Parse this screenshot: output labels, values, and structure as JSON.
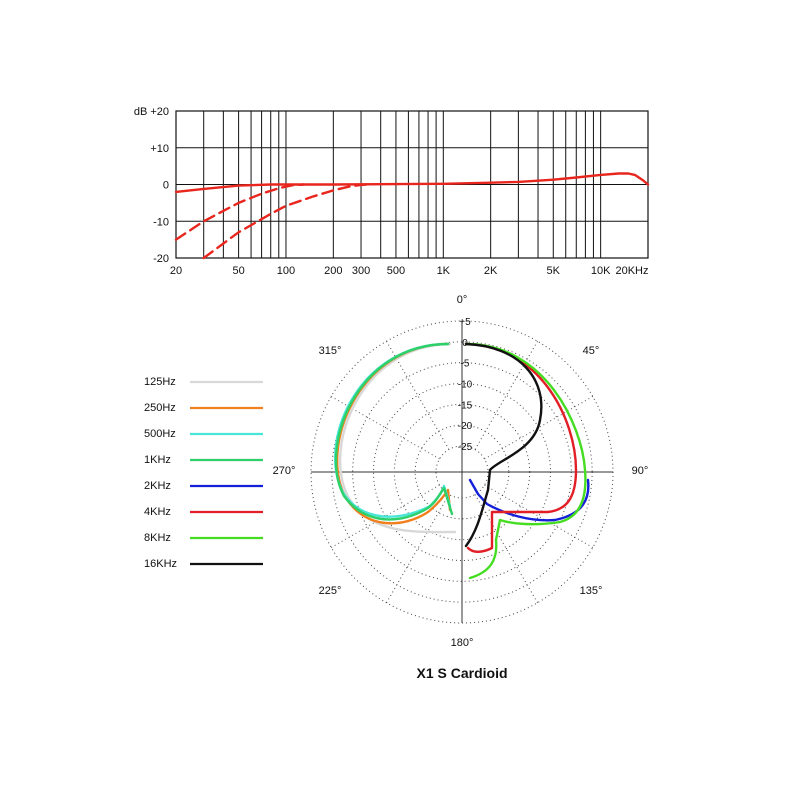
{
  "chart_data": [
    {
      "type": "line",
      "x_scale": "log",
      "xlim": [
        20,
        20000
      ],
      "ylim": [
        -20,
        20
      ],
      "y_ticks": [
        {
          "value": 20,
          "label": "dB +20"
        },
        {
          "value": 10,
          "label": "+10"
        },
        {
          "value": 0,
          "label": "0"
        },
        {
          "value": -10,
          "label": "-10"
        },
        {
          "value": -20,
          "label": "-20"
        }
      ],
      "x_ticks": [
        {
          "value": 20,
          "label": "20"
        },
        {
          "value": 50,
          "label": "50"
        },
        {
          "value": 100,
          "label": "100"
        },
        {
          "value": 200,
          "label": "200"
        },
        {
          "value": 300,
          "label": "300"
        },
        {
          "value": 500,
          "label": "500"
        },
        {
          "value": 1000,
          "label": "1K"
        },
        {
          "value": 2000,
          "label": "2K"
        },
        {
          "value": 5000,
          "label": "5K"
        },
        {
          "value": 10000,
          "label": "10K"
        },
        {
          "value": 20000,
          "label": "20KHz"
        }
      ],
      "grid": true,
      "series": [
        {
          "style": "solid",
          "color": "#e8261e",
          "points": [
            [
              20,
              -2
            ],
            [
              30,
              -1.2
            ],
            [
              50,
              -0.3
            ],
            [
              80,
              0
            ],
            [
              200,
              0
            ],
            [
              500,
              0.1
            ],
            [
              1000,
              0.2
            ],
            [
              2000,
              0.5
            ],
            [
              3000,
              0.7
            ],
            [
              5000,
              1.3
            ],
            [
              7000,
              1.9
            ],
            [
              10000,
              2.6
            ],
            [
              13000,
              3.0
            ],
            [
              15000,
              3.0
            ],
            [
              16500,
              2.6
            ],
            [
              18500,
              1.2
            ],
            [
              20000,
              0
            ]
          ]
        },
        {
          "style": "dashed",
          "color": "#e8261e",
          "points": [
            [
              20,
              -15
            ],
            [
              30,
              -10
            ],
            [
              50,
              -5
            ],
            [
              70,
              -2.5
            ],
            [
              90,
              -1
            ],
            [
              110,
              -0.2
            ],
            [
              130,
              0
            ]
          ]
        },
        {
          "style": "dashed",
          "color": "#e8261e",
          "points": [
            [
              30,
              -20
            ],
            [
              50,
              -13
            ],
            [
              80,
              -8
            ],
            [
              100,
              -5.8
            ],
            [
              150,
              -3.2
            ],
            [
              200,
              -1.6
            ],
            [
              250,
              -0.6
            ],
            [
              300,
              -0.1
            ],
            [
              330,
              0
            ]
          ]
        }
      ]
    },
    {
      "type": "polar",
      "r_ticks": [
        "+5",
        "0",
        "-5",
        "-10",
        "-15",
        "-20",
        "-25"
      ],
      "angle_labels": [
        "0°",
        "45°",
        "90°",
        "135°",
        "180°",
        "225°",
        "270°",
        "315°"
      ],
      "legend_position": "left",
      "series": [
        {
          "name": "125Hz",
          "color": "#d8d8d8"
        },
        {
          "name": "250Hz",
          "color": "#f07f1e"
        },
        {
          "name": "500Hz",
          "color": "#48e6d8"
        },
        {
          "name": "1KHz",
          "color": "#2ed06a"
        },
        {
          "name": "2KHz",
          "color": "#1420d8"
        },
        {
          "name": "4KHz",
          "color": "#e21e26"
        },
        {
          "name": "8KHz",
          "color": "#44dd22"
        },
        {
          "name": "16KHz",
          "color": "#111111"
        }
      ],
      "title": "X1 S  Cardioid"
    }
  ]
}
